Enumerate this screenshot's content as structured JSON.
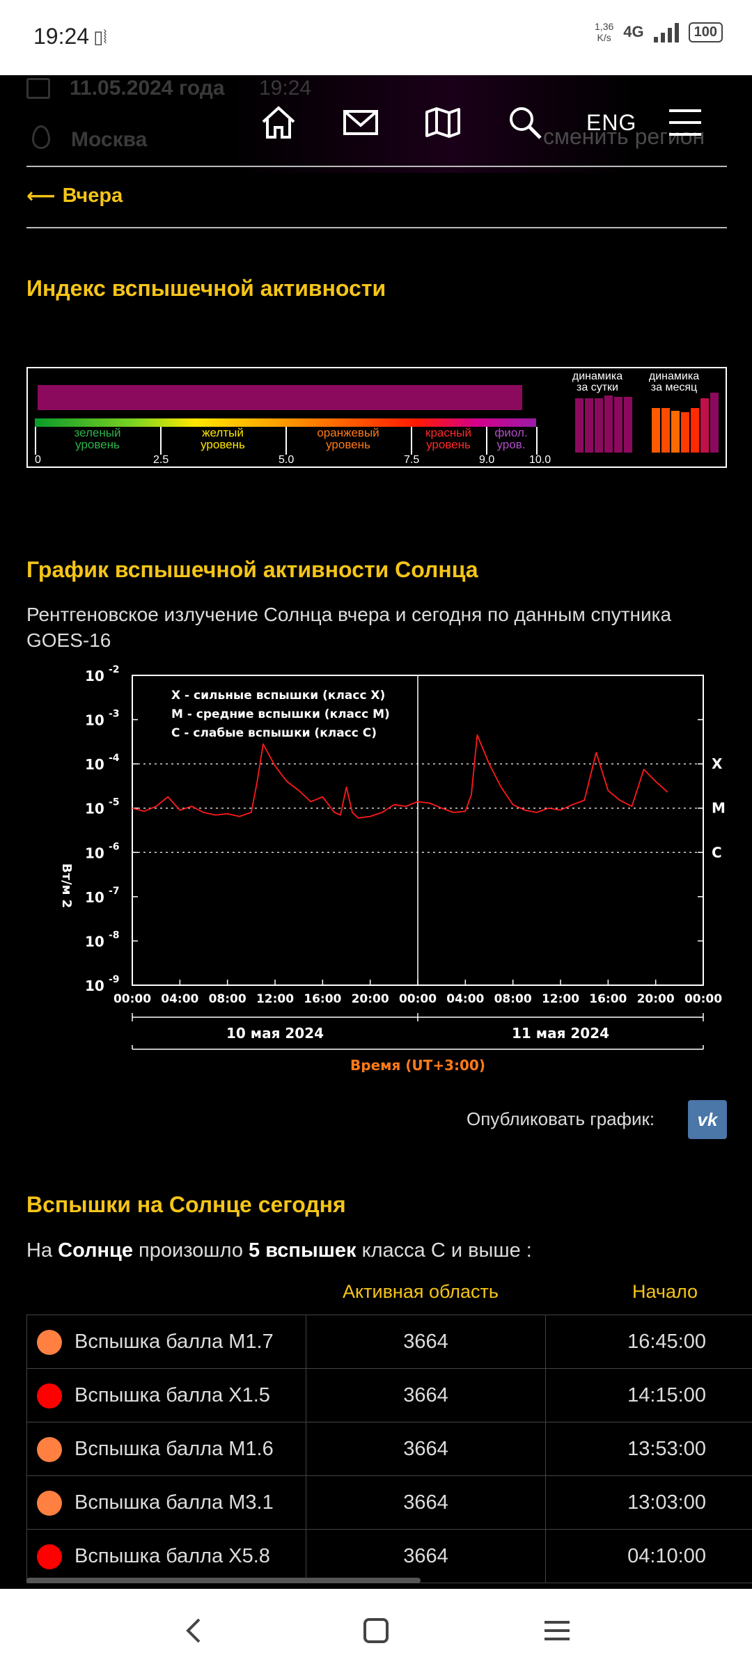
{
  "status_bar": {
    "time": "19:24",
    "net_speed_value": "1,36",
    "net_speed_unit": "K/s",
    "network": "4G",
    "battery": "100"
  },
  "header": {
    "date": "11.05.2024 года",
    "time": "19:24",
    "city": "Москва",
    "change_region": "сменить регион",
    "lang": "ENG",
    "icons": [
      "home-icon",
      "mail-icon",
      "map-icon",
      "search-icon",
      "menu-icon"
    ]
  },
  "back_link": "Вчера",
  "index": {
    "title": "Индекс вспышечной активности",
    "value": 9.8,
    "levels": [
      {
        "label1": "зеленый",
        "label2": "уровень",
        "color": "#2db34a"
      },
      {
        "label1": "желтый",
        "label2": "уровень",
        "color": "#ffe600"
      },
      {
        "label1": "оранжевый",
        "label2": "уровень",
        "color": "#ff7a1a"
      },
      {
        "label1": "красный",
        "label2": "уровень",
        "color": "#ff2a2a"
      },
      {
        "label1": "фиол.",
        "label2": "уров.",
        "color": "#b04dc8"
      }
    ],
    "ticks": [
      "0",
      "2.5",
      "5.0",
      "7.5",
      "9.0",
      "10.0"
    ],
    "dyn_day_label1": "динамика",
    "dyn_day_label2": "за сутки",
    "dyn_month_label1": "динамика",
    "dyn_month_label2": "за месяц"
  },
  "chart_section": {
    "title": "График вспышечной активности Солнца",
    "subtitle": "Рентгеновское излучение Солнца вчера и сегодня по данным спутника GOES-16",
    "publish_label": "Опубликовать график:",
    "vk_label": "vk"
  },
  "chart_data": {
    "type": "line",
    "y_scale": "log",
    "ylim": [
      1e-09,
      0.01
    ],
    "ylabel": "Вт/м 2",
    "y_ticks": [
      "-2",
      "-3",
      "-4",
      "-5",
      "-6",
      "-7",
      "-8",
      "-9"
    ],
    "x_ticks": [
      "00:00",
      "04:00",
      "08:00",
      "12:00",
      "16:00",
      "20:00",
      "00:00",
      "04:00",
      "08:00",
      "12:00",
      "16:00",
      "20:00",
      "00:00"
    ],
    "day_labels": [
      "10 мая 2024",
      "11 мая 2024"
    ],
    "xlabel": "Время (UT+3:00)",
    "class_lines": [
      {
        "label": "X",
        "level": 0.0001
      },
      {
        "label": "M",
        "level": 1e-05
      },
      {
        "label": "C",
        "level": 1e-06
      }
    ],
    "legend": [
      "X - сильные вспышки (класс X)",
      "M - средние вспышки (класс M)",
      "C - слабые вспышки (класс C)"
    ],
    "series": [
      {
        "color": "#ff1a1a",
        "points": [
          [
            0,
            1e-05
          ],
          [
            1,
            8.5e-06
          ],
          [
            2,
            1.1e-05
          ],
          [
            3,
            1.8e-05
          ],
          [
            4,
            9e-06
          ],
          [
            5,
            1.1e-05
          ],
          [
            6,
            8e-06
          ],
          [
            7,
            7e-06
          ],
          [
            8,
            7.5e-06
          ],
          [
            9,
            6.5e-06
          ],
          [
            10,
            8e-06
          ],
          [
            10.5,
            4e-05
          ],
          [
            11,
            0.00028
          ],
          [
            12,
            9e-05
          ],
          [
            13,
            4e-05
          ],
          [
            14,
            2.5e-05
          ],
          [
            15,
            1.4e-05
          ],
          [
            16,
            1.8e-05
          ],
          [
            17,
            8e-06
          ],
          [
            17.5,
            7e-06
          ],
          [
            18,
            3e-05
          ],
          [
            18.5,
            8e-06
          ],
          [
            19,
            6e-06
          ],
          [
            20,
            6.5e-06
          ],
          [
            21,
            8e-06
          ],
          [
            22,
            1.2e-05
          ],
          [
            23,
            1.1e-05
          ],
          [
            24,
            1.4e-05
          ],
          [
            25,
            1.3e-05
          ],
          [
            26,
            1e-05
          ],
          [
            27,
            8e-06
          ],
          [
            28,
            8.5e-06
          ],
          [
            28.5,
            2e-05
          ],
          [
            29,
            0.00045
          ],
          [
            30,
            0.0001
          ],
          [
            31,
            3e-05
          ],
          [
            32,
            1.2e-05
          ],
          [
            33,
            9e-06
          ],
          [
            34,
            8e-06
          ],
          [
            35,
            1e-05
          ],
          [
            36,
            9e-06
          ],
          [
            37,
            1.2e-05
          ],
          [
            38,
            1.5e-05
          ],
          [
            39,
            0.00018
          ],
          [
            40,
            2.5e-05
          ],
          [
            41,
            1.5e-05
          ],
          [
            42,
            1.1e-05
          ],
          [
            43,
            7.5e-05
          ],
          [
            44,
            4e-05
          ],
          [
            45,
            2.3e-05
          ]
        ]
      }
    ]
  },
  "flares": {
    "title": "Вспышки на Солнце сегодня",
    "intro_pre": "На",
    "intro_sun": "Солнце",
    "intro_mid": "произошло",
    "intro_count": "5 вспышек",
    "intro_post": "класса С и выше :",
    "col_region": "Активная область",
    "col_start": "Начало",
    "rows": [
      {
        "name": "Вспышка балла M1.7",
        "region": "3664",
        "start": "16:45:00",
        "color": "#ff8040"
      },
      {
        "name": "Вспышка балла X1.5",
        "region": "3664",
        "start": "14:15:00",
        "color": "#ff0000"
      },
      {
        "name": "Вспышка балла M1.6",
        "region": "3664",
        "start": "13:53:00",
        "color": "#ff8040"
      },
      {
        "name": "Вспышка балла M3.1",
        "region": "3664",
        "start": "13:03:00",
        "color": "#ff8040"
      },
      {
        "name": "Вспышка балла X5.8",
        "region": "3664",
        "start": "04:10:00",
        "color": "#ff0000"
      }
    ]
  },
  "nav_bar": {
    "icons": [
      "back-icon",
      "home-square-icon",
      "recents-icon"
    ]
  }
}
